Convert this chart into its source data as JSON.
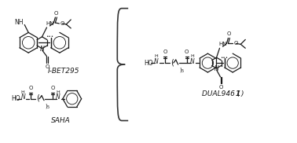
{
  "background_color": "#ffffff",
  "structure_color": "#1a1a1a",
  "brace_color": "#333333",
  "label_ibet": "I-BET295",
  "label_saha": "SAHA",
  "label_dual": "DUAL946 (",
  "label_dual_bold": "1",
  "label_dual_end": ")",
  "figsize": [
    3.78,
    1.82
  ],
  "dpi": 100
}
